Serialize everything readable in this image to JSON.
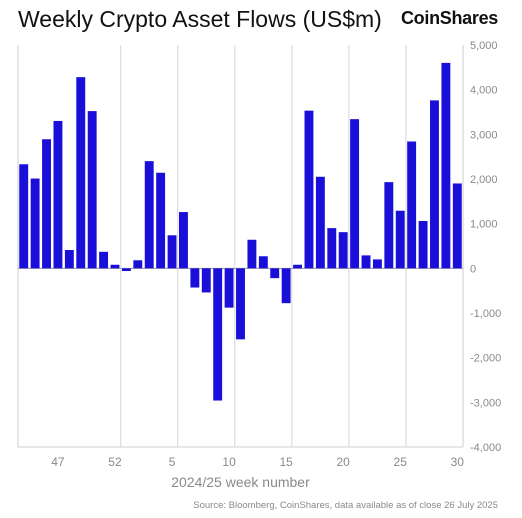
{
  "header": {
    "title": "Weekly Crypto Asset Flows (US$m)",
    "brand": "CoinShares"
  },
  "footer": {
    "source": "Source: Bloomberg, CoinShares, data available as of close 26 July 2025"
  },
  "chart_data": {
    "type": "bar",
    "title": "Weekly Crypto Asset Flows (US$m)",
    "xlabel": "2024/25 week number",
    "ylabel": "",
    "ylim": [
      -4000,
      5000
    ],
    "yticks": [
      5000,
      4000,
      3000,
      2000,
      1000,
      0,
      -1000,
      -2000,
      -3000,
      -4000
    ],
    "ytick_labels": [
      "5,000",
      "4,000",
      "3,000",
      "2,000",
      "1,000",
      "0",
      "-1,000",
      "-2,000",
      "-3,000",
      "-4,000"
    ],
    "x_tick_labels": [
      "47",
      "52",
      "5",
      "10",
      "15",
      "20",
      "25",
      "30"
    ],
    "color": "#1a0fd9",
    "grid": true,
    "categories": [
      "44",
      "45",
      "46",
      "47",
      "48",
      "49",
      "50",
      "51",
      "52",
      "1",
      "2",
      "3",
      "4",
      "5",
      "6",
      "7",
      "8",
      "9",
      "10",
      "11",
      "12",
      "13",
      "14",
      "15",
      "16",
      "17",
      "18",
      "19",
      "20",
      "21",
      "22",
      "23",
      "24",
      "25",
      "26",
      "27",
      "28",
      "29",
      "30"
    ],
    "values": [
      2330,
      2010,
      2890,
      3300,
      410,
      4280,
      3520,
      370,
      80,
      -60,
      180,
      2400,
      2140,
      740,
      1260,
      -430,
      -540,
      -2960,
      -880,
      -1590,
      640,
      270,
      -220,
      -780,
      80,
      3530,
      2050,
      900,
      810,
      3340,
      290,
      200,
      1930,
      1290,
      2840,
      1060,
      3760,
      4600,
      1900
    ]
  }
}
